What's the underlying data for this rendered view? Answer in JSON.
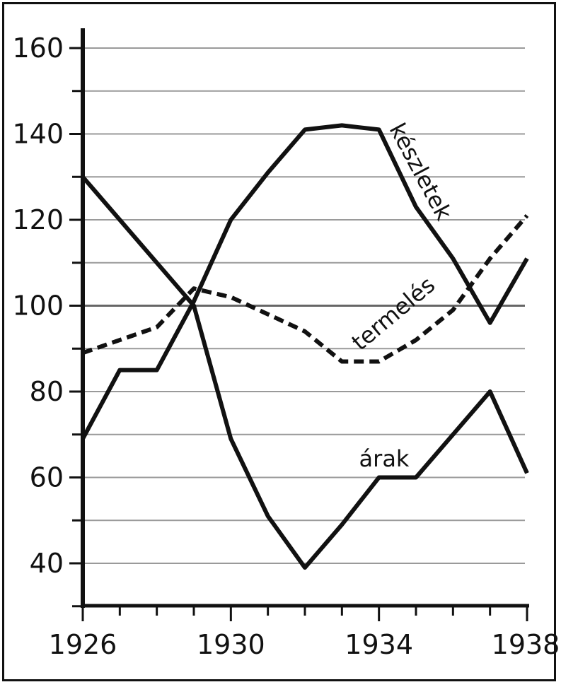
{
  "chart_data": {
    "type": "line",
    "title": "",
    "xlabel": "",
    "ylabel": "",
    "xlim": [
      1926,
      1938
    ],
    "ylim": [
      27,
      165
    ],
    "x_ticks": [
      1926,
      1930,
      1934,
      1938
    ],
    "y_ticks": [
      40,
      60,
      80,
      100,
      120,
      140,
      160
    ],
    "grid": "horizontal",
    "series": [
      {
        "name": "árak",
        "style": "solid",
        "x": [
          1926,
          1927,
          1928,
          1929,
          1930,
          1931,
          1932,
          1933,
          1934,
          1935,
          1936,
          1937,
          1938
        ],
        "y": [
          130,
          120,
          110,
          100,
          69,
          51,
          39,
          49,
          60,
          60,
          70,
          80,
          61
        ]
      },
      {
        "name": "készletek",
        "style": "solid",
        "x": [
          1926,
          1927,
          1928,
          1929,
          1930,
          1931,
          1932,
          1933,
          1934,
          1935,
          1936,
          1937,
          1938
        ],
        "y": [
          69,
          85,
          85,
          101,
          120,
          131,
          141,
          142,
          141,
          123,
          111,
          96,
          111
        ]
      },
      {
        "name": "termelés",
        "style": "dashed",
        "x": [
          1926,
          1927,
          1928,
          1929,
          1930,
          1931,
          1932,
          1933,
          1934,
          1935,
          1936,
          1937,
          1938
        ],
        "y": [
          89,
          92,
          95,
          104,
          102,
          98,
          94,
          87,
          87,
          92,
          99,
          111,
          121
        ]
      }
    ],
    "labels": [
      {
        "series": "készletek",
        "text": "készletek"
      },
      {
        "series": "termelés",
        "text": "termelés"
      },
      {
        "series": "árak",
        "text": "árak"
      }
    ]
  },
  "colors": {
    "ink": "#111111",
    "grid": "#9a9a9a",
    "background": "#ffffff"
  }
}
